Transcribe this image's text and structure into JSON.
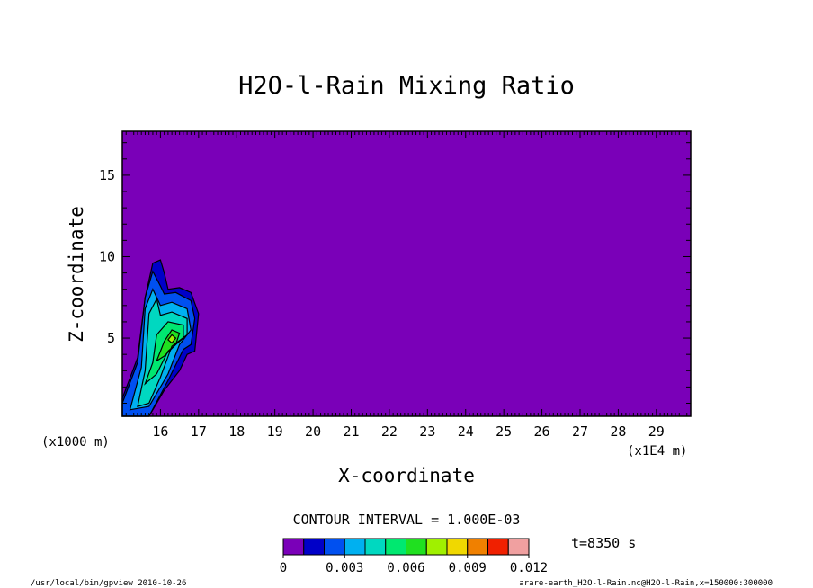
{
  "chart_data": {
    "type": "heatmap",
    "title": "H2O-l-Rain Mixing Ratio",
    "xlabel": "X-coordinate",
    "ylabel": "Z-coordinate",
    "x_unit_left": "(x1000 m)",
    "x_unit_right": "(x1E4 m)",
    "xlim": [
      15.0,
      29.9
    ],
    "ylim": [
      0.2,
      17.7
    ],
    "x_ticks": [
      16,
      17,
      18,
      19,
      20,
      21,
      22,
      23,
      24,
      25,
      26,
      27,
      28,
      29
    ],
    "y_ticks": [
      5,
      10,
      15
    ],
    "contour_interval_text": "CONTOUR INTERVAL = 1.000E-03",
    "time_text": "t=8350 s",
    "colorbar": {
      "levels": [
        0,
        0.001,
        0.002,
        0.003,
        0.004,
        0.005,
        0.006,
        0.007,
        0.008,
        0.009,
        0.01,
        0.011,
        0.012
      ],
      "tick_labels": [
        "0",
        "0.003",
        "0.006",
        "0.009",
        "0.012"
      ],
      "tick_values": [
        0,
        0.003,
        0.006,
        0.009,
        0.012
      ],
      "colors": [
        "#7a00b8",
        "#0000c8",
        "#0050f0",
        "#00b0f0",
        "#00d8c0",
        "#00e870",
        "#20e020",
        "#a0f000",
        "#f0d800",
        "#f08000",
        "#f02000",
        "#f0a0a0"
      ]
    },
    "field_background_color": "#7a00b8",
    "field_background_value": 0,
    "contour_regions": [
      {
        "level": 0.001,
        "color": "#0000c8",
        "points": [
          [
            15.0,
            0.2
          ],
          [
            15.0,
            1.3
          ],
          [
            15.4,
            3.8
          ],
          [
            15.6,
            7.5
          ],
          [
            15.8,
            9.6
          ],
          [
            16.0,
            9.8
          ],
          [
            16.1,
            9.0
          ],
          [
            16.2,
            8.0
          ],
          [
            16.5,
            8.1
          ],
          [
            16.8,
            7.8
          ],
          [
            17.0,
            6.5
          ],
          [
            16.9,
            4.2
          ],
          [
            16.7,
            4.0
          ],
          [
            16.5,
            3.0
          ],
          [
            16.1,
            1.8
          ],
          [
            15.7,
            0.2
          ]
        ]
      },
      {
        "level": 0.002,
        "color": "#0050f0",
        "points": [
          [
            15.0,
            0.2
          ],
          [
            15.0,
            1.0
          ],
          [
            15.4,
            3.5
          ],
          [
            15.6,
            7.5
          ],
          [
            15.8,
            9.1
          ],
          [
            16.0,
            8.2
          ],
          [
            16.1,
            7.7
          ],
          [
            16.4,
            7.8
          ],
          [
            16.8,
            7.3
          ],
          [
            16.9,
            6.2
          ],
          [
            16.8,
            4.6
          ],
          [
            16.6,
            4.3
          ],
          [
            16.2,
            2.4
          ],
          [
            15.7,
            0.2
          ]
        ]
      },
      {
        "level": 0.003,
        "color": "#00b0f0",
        "points": [
          [
            15.2,
            0.6
          ],
          [
            15.5,
            3.2
          ],
          [
            15.6,
            6.8
          ],
          [
            15.8,
            8.0
          ],
          [
            16.0,
            7.0
          ],
          [
            16.3,
            7.2
          ],
          [
            16.7,
            6.8
          ],
          [
            16.8,
            5.5
          ],
          [
            16.5,
            4.6
          ],
          [
            16.2,
            2.8
          ],
          [
            15.7,
            0.8
          ]
        ]
      },
      {
        "level": 0.004,
        "color": "#00d8c0",
        "points": [
          [
            15.4,
            0.8
          ],
          [
            15.6,
            3.0
          ],
          [
            15.7,
            6.5
          ],
          [
            15.9,
            7.4
          ],
          [
            16.0,
            6.4
          ],
          [
            16.3,
            6.6
          ],
          [
            16.7,
            6.2
          ],
          [
            16.7,
            5.2
          ],
          [
            16.3,
            4.5
          ],
          [
            16.0,
            2.6
          ],
          [
            15.7,
            1.0
          ]
        ]
      },
      {
        "level": 0.005,
        "color": "#00e870",
        "points": [
          [
            15.6,
            2.2
          ],
          [
            15.8,
            3.5
          ],
          [
            15.9,
            5.2
          ],
          [
            16.2,
            6.0
          ],
          [
            16.6,
            5.8
          ],
          [
            16.6,
            5.0
          ],
          [
            16.2,
            4.2
          ],
          [
            15.9,
            2.8
          ]
        ]
      },
      {
        "level": 0.006,
        "color": "#20e020",
        "points": [
          [
            15.9,
            3.6
          ],
          [
            16.1,
            4.8
          ],
          [
            16.3,
            5.5
          ],
          [
            16.5,
            5.3
          ],
          [
            16.4,
            4.6
          ],
          [
            16.1,
            3.9
          ]
        ]
      },
      {
        "level": 0.007,
        "color": "#a0f000",
        "points": [
          [
            16.2,
            4.9
          ],
          [
            16.3,
            5.2
          ],
          [
            16.4,
            5.0
          ],
          [
            16.3,
            4.7
          ]
        ]
      }
    ],
    "footer_left": "/usr/local/bin/gpview   2010-10-26",
    "footer_right": "arare-earth_H2O-l-Rain.nc@H2O-l-Rain,x=150000:300000"
  }
}
